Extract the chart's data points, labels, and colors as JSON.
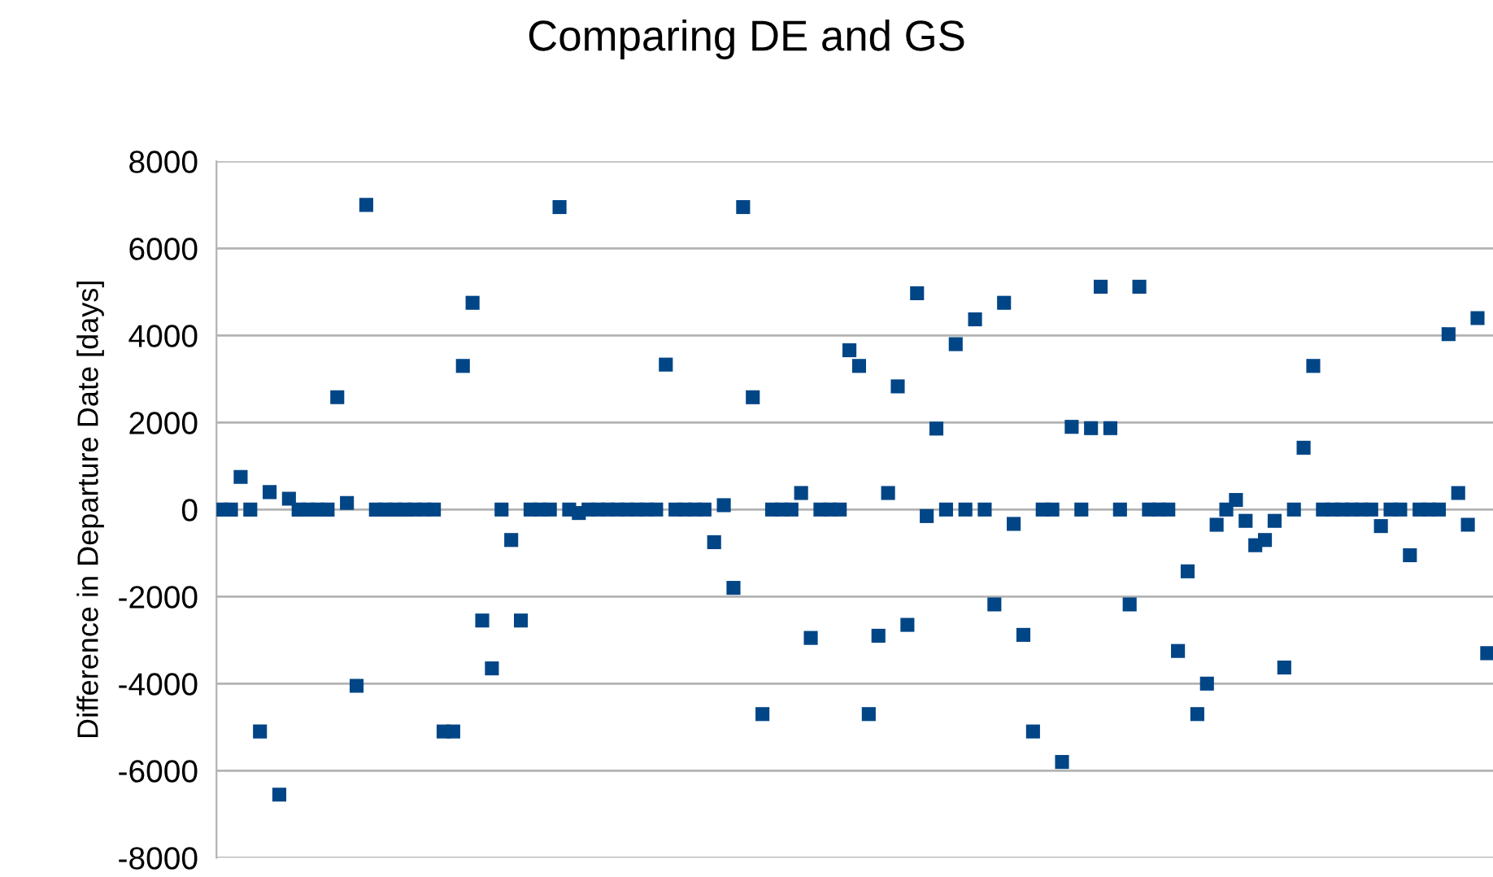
{
  "chart_data": {
    "type": "scatter",
    "title": "Comparing DE and GS",
    "ylabel": "Difference in Departure Date [days]",
    "categories": [
      null,
      null,
      null,
      null,
      null,
      null,
      null,
      null,
      null,
      null,
      null,
      null,
      null,
      null,
      null,
      null,
      null,
      null,
      null,
      null,
      null,
      null,
      null,
      null,
      null,
      null,
      null,
      null,
      null,
      null,
      null,
      null,
      null,
      null,
      null,
      null,
      null,
      null,
      null,
      null,
      null,
      null,
      null,
      null,
      null,
      null,
      null,
      null,
      null,
      null,
      null,
      null,
      null,
      null,
      null,
      null,
      null,
      null,
      null,
      null,
      null,
      null,
      null,
      null,
      null,
      null,
      null,
      null,
      null,
      null,
      null,
      null,
      null,
      null,
      null,
      null,
      null,
      null,
      null,
      null,
      null,
      null,
      null,
      null,
      null,
      null,
      null,
      null,
      null,
      null,
      null,
      null,
      null,
      null,
      null,
      null,
      null,
      null,
      null,
      null,
      null,
      null,
      null,
      null,
      null,
      null,
      null,
      null,
      null,
      null,
      null,
      null,
      null,
      null,
      null,
      null,
      null,
      null,
      null,
      null,
      null,
      null,
      null,
      null,
      null,
      null,
      null,
      null,
      null,
      null,
      null,
      null
    ],
    "series": [
      {
        "color": "#004586",
        "values": [
          0,
          0,
          750,
          0,
          -5100,
          400,
          -6550,
          250,
          0,
          0,
          0,
          0,
          2580,
          150,
          -4050,
          7000,
          0,
          0,
          0,
          0,
          0,
          0,
          0,
          -5100,
          -5100,
          3300,
          4750,
          -2550,
          -3650,
          0,
          -700,
          -2550,
          0,
          0,
          0,
          6950,
          0,
          -80,
          0,
          0,
          0,
          0,
          0,
          0,
          0,
          0,
          3330,
          0,
          0,
          0,
          0,
          -750,
          100,
          -1800,
          6950,
          2580,
          -4700,
          0,
          0,
          0,
          380,
          -2950,
          0,
          0,
          0,
          3660,
          3300,
          -4700,
          -2900,
          380,
          2830,
          -2650,
          4970,
          -150,
          1860,
          0,
          3800,
          0,
          4370,
          0,
          -2180,
          4750,
          -330,
          -2880,
          -5100,
          0,
          0,
          -5800,
          1900,
          0,
          1870,
          5120,
          1870,
          0,
          -2180,
          5120,
          0,
          0,
          0,
          -3250,
          -1420,
          -4700,
          -4000,
          -350,
          0,
          220,
          -260,
          -820,
          -700,
          -260,
          -3630,
          0,
          1420,
          3300,
          0,
          0,
          0,
          0,
          0,
          0,
          -380,
          0,
          0,
          -1050,
          0,
          0,
          0,
          4030,
          380,
          -350,
          4400,
          -3300
        ]
      }
    ],
    "ylim": [
      -8000,
      8000
    ],
    "yticks": [
      -8000,
      -6000,
      -4000,
      -2000,
      0,
      2000,
      4000,
      6000,
      8000
    ],
    "grid": "y",
    "marker": "square"
  }
}
